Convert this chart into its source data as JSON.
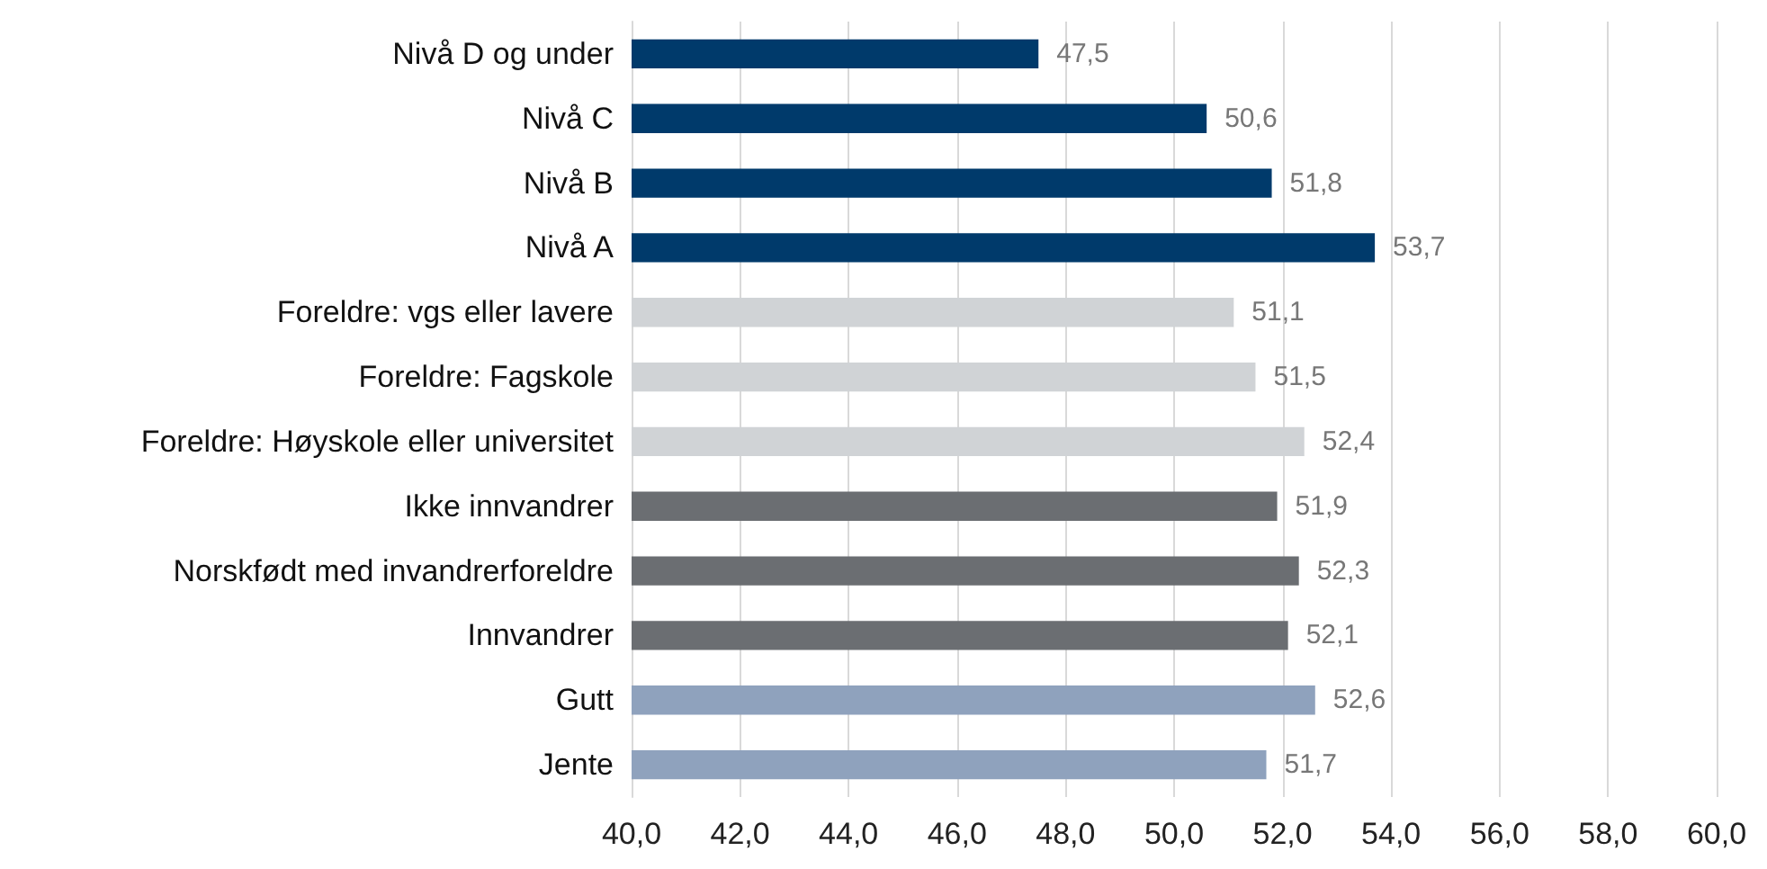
{
  "chart_data": {
    "type": "bar",
    "orientation": "horizontal",
    "categories": [
      "Nivå D og under",
      "Nivå C",
      "Nivå B",
      "Nivå A",
      "Foreldre: vgs eller lavere",
      "Foreldre: Fagskole",
      "Foreldre: Høyskole eller universitet",
      "Ikke innvandrer",
      "Norskfødt med invandrerforeldre",
      "Innvandrer",
      "Gutt",
      "Jente"
    ],
    "values": [
      47.5,
      50.6,
      51.8,
      53.7,
      51.1,
      51.5,
      52.4,
      51.9,
      52.3,
      52.1,
      52.6,
      51.7
    ],
    "value_labels": [
      "47,5",
      "50,6",
      "51,8",
      "53,7",
      "51,1",
      "51,5",
      "52,4",
      "51,9",
      "52,3",
      "52,1",
      "52,6",
      "51,7"
    ],
    "colors": [
      "#003a6b",
      "#003a6b",
      "#003a6b",
      "#003a6b",
      "#d0d3d6",
      "#d0d3d6",
      "#d0d3d6",
      "#6b6e72",
      "#6b6e72",
      "#6b6e72",
      "#8fa2bd",
      "#8fa2bd"
    ],
    "xlim": [
      40,
      60
    ],
    "xticks": [
      {
        "value": 40,
        "label": "40,0"
      },
      {
        "value": 42,
        "label": "42,0"
      },
      {
        "value": 44,
        "label": "44,0"
      },
      {
        "value": 46,
        "label": "46,0"
      },
      {
        "value": 48,
        "label": "48,0"
      },
      {
        "value": 50,
        "label": "50,0"
      },
      {
        "value": 52,
        "label": "52,0"
      },
      {
        "value": 54,
        "label": "54,0"
      },
      {
        "value": 56,
        "label": "56,0"
      },
      {
        "value": 58,
        "label": "58,0"
      },
      {
        "value": 60,
        "label": "60,0"
      }
    ],
    "grid": "x"
  }
}
